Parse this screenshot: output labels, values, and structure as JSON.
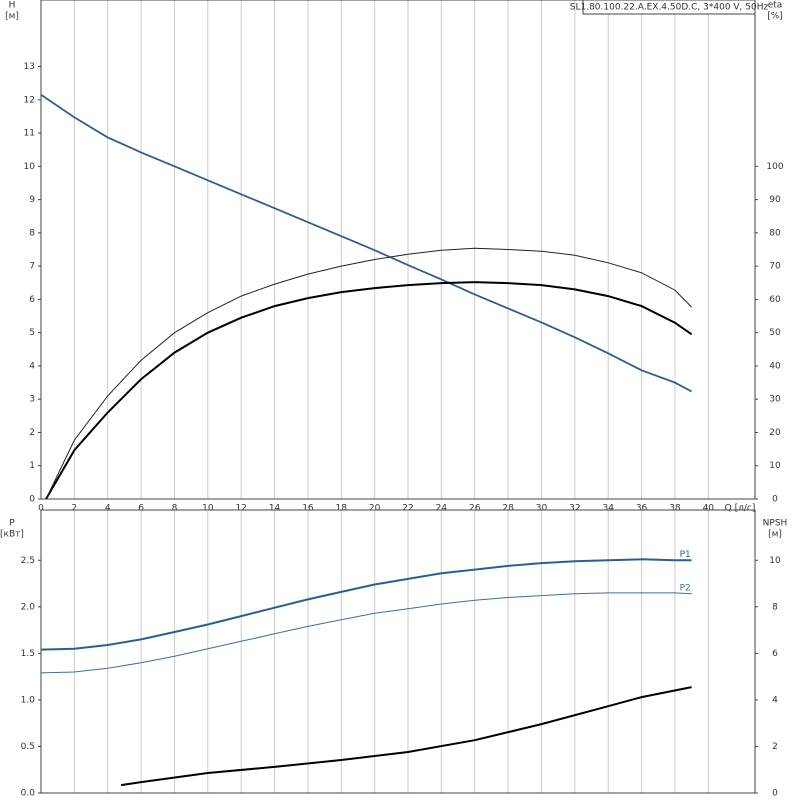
{
  "chart_data": [
    {
      "type": "line",
      "title": "SL1.80.100.22.A.EX.4.50D.C, 3*400 V, 50Hz",
      "x_label": "Q [л/с]",
      "y_label": [
        "H",
        "[м]"
      ],
      "y2_label": [
        "eta",
        "[%]"
      ],
      "xlim": [
        0,
        42.8
      ],
      "xticks": [
        0,
        2,
        4,
        6,
        8,
        10,
        12,
        14,
        16,
        18,
        20,
        22,
        24,
        26,
        28,
        30,
        32,
        34,
        36,
        38,
        40
      ],
      "ylim": [
        0,
        15
      ],
      "yticks": [
        0,
        1,
        2,
        3,
        4,
        5,
        6,
        7,
        8,
        9,
        10,
        11,
        12,
        13
      ],
      "y2lim": [
        0,
        150
      ],
      "y2ticks": [
        0,
        10,
        20,
        30,
        40,
        50,
        60,
        70,
        80,
        90,
        100
      ],
      "grid": true,
      "series": [
        {
          "color": "#2b5f92",
          "linewidth": 1.8,
          "x": [
            0,
            2,
            4,
            6,
            8,
            10,
            12,
            14,
            16,
            18,
            20,
            22,
            24,
            26,
            28,
            30,
            32,
            34,
            36,
            38,
            39
          ],
          "values": [
            12.15,
            11.47,
            10.87,
            10.42,
            10.0,
            9.58,
            9.16,
            8.74,
            8.32,
            7.9,
            7.48,
            7.03,
            6.6,
            6.15,
            5.73,
            5.31,
            4.86,
            4.38,
            3.87,
            3.5,
            3.23
          ]
        },
        {
          "color": "#000000",
          "linewidth": 2,
          "axis": "y2",
          "x": [
            0.3,
            2,
            4,
            6,
            8,
            10,
            12,
            14,
            16,
            18,
            20,
            22,
            24,
            26,
            28,
            30,
            32,
            34,
            36,
            38,
            39
          ],
          "values": [
            0,
            14.7,
            26,
            36,
            44,
            50,
            54.5,
            58,
            60.4,
            62.2,
            63.4,
            64.3,
            64.9,
            65.2,
            64.9,
            64.3,
            63,
            61,
            58,
            53,
            49.5
          ]
        },
        {
          "color": "#222222",
          "linewidth": 1,
          "axis": "y2",
          "x": [
            0.3,
            2,
            4,
            6,
            8,
            10,
            12,
            14,
            16,
            18,
            20,
            22,
            24,
            26,
            28,
            30,
            32,
            34,
            36,
            38,
            39
          ],
          "values": [
            0,
            17.7,
            31,
            41.7,
            50,
            56,
            61,
            64.6,
            67.6,
            70,
            72,
            73.6,
            74.8,
            75.4,
            75,
            74.5,
            73.3,
            71,
            68,
            62.8,
            57.7
          ]
        }
      ]
    },
    {
      "type": "line",
      "y_label": [
        "P",
        "[кВт]"
      ],
      "y2_label": [
        "NPSH",
        "[м]"
      ],
      "xlim": [
        0,
        42.8
      ],
      "ylim": [
        0,
        3.04
      ],
      "yticks": [
        {
          "value": 0,
          "label": "0.0"
        },
        0.5,
        {
          "value": 1,
          "label": "1.0"
        },
        1.5,
        {
          "value": 2,
          "label": "2.0"
        },
        2.5
      ],
      "y2lim": [
        0,
        12.16
      ],
      "y2ticks": [
        0,
        2,
        4,
        6,
        8,
        10
      ],
      "series": [
        {
          "name": "P1",
          "color": "#2b5f92",
          "linewidth": 2,
          "x": [
            0,
            2,
            4,
            6,
            8,
            10,
            12,
            14,
            16,
            18,
            20,
            22,
            24,
            26,
            28,
            30,
            32,
            34,
            36,
            38,
            39
          ],
          "values": [
            1.54,
            1.55,
            1.59,
            1.65,
            1.73,
            1.81,
            1.9,
            1.99,
            2.08,
            2.16,
            2.24,
            2.3,
            2.36,
            2.4,
            2.44,
            2.47,
            2.49,
            2.5,
            2.51,
            2.5,
            2.5
          ]
        },
        {
          "name": "P2",
          "color": "#3d6f9e",
          "linewidth": 1,
          "x": [
            0,
            2,
            4,
            6,
            8,
            10,
            12,
            14,
            16,
            18,
            20,
            22,
            24,
            26,
            28,
            30,
            32,
            34,
            36,
            38,
            39
          ],
          "values": [
            1.29,
            1.3,
            1.34,
            1.4,
            1.47,
            1.55,
            1.63,
            1.71,
            1.79,
            1.86,
            1.93,
            1.98,
            2.03,
            2.07,
            2.1,
            2.12,
            2.14,
            2.15,
            2.15,
            2.15,
            2.14
          ]
        },
        {
          "color": "#000000",
          "linewidth": 2,
          "axis": "y2",
          "x": [
            4.8,
            6,
            10,
            14,
            18,
            22,
            26,
            30,
            34,
            36,
            39
          ],
          "values": [
            0.34,
            0.47,
            0.86,
            1.12,
            1.42,
            1.76,
            2.27,
            2.96,
            3.73,
            4.12,
            4.55
          ]
        }
      ]
    }
  ]
}
